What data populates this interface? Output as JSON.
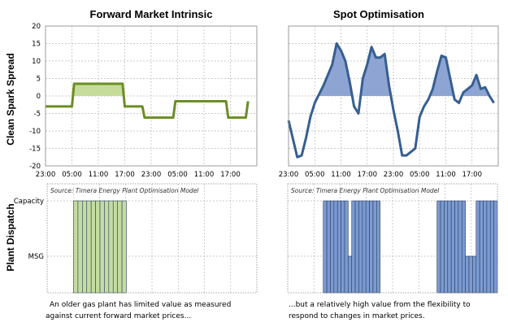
{
  "titles": {
    "left": "Forward Market Intrinsic",
    "right": "Spot Optimisation"
  },
  "axis_labels": {
    "top": "Clean Spark Spread",
    "bottom": "Plant Dispatch"
  },
  "source_note": "Source: Timera Energy Plant Optimisation Model",
  "captions": {
    "left": [
      "An older gas plant has limited value as measured",
      "against current forward market prices..."
    ],
    "right": [
      "...but a relatively high value from the flexibility to",
      "respond to changes in market prices."
    ]
  },
  "colors": {
    "forward_line": "#6b8e23",
    "forward_fill": "#c6dc9a",
    "spot_line": "#365f91",
    "spot_fill": "#8ea4d2",
    "dispatch_fill_green": "#c4dca0",
    "dispatch_fill_blue": "#7b9ad0"
  },
  "chart_data": [
    {
      "type": "line",
      "title": "Forward Market Intrinsic",
      "ylabel": "Clean Spark Spread",
      "ylim": [
        -20,
        20
      ],
      "yticks": [
        -20,
        -15,
        -10,
        -5,
        0,
        5,
        10,
        15,
        20
      ],
      "xlim": [
        0,
        48
      ],
      "xticks": [
        0,
        6,
        12,
        18,
        24,
        30,
        36,
        42
      ],
      "xtick_labels": [
        "23:00",
        "05:00",
        "11:00",
        "17:00",
        "23:00",
        "05:00",
        "11:00",
        "17:00"
      ],
      "grid": true,
      "series": [
        {
          "x": [
            0,
            6,
            6.5,
            17.5,
            18,
            22,
            22.5,
            29,
            29.5,
            41,
            41.5,
            45.5,
            46
          ],
          "y": [
            -3,
            -3,
            3.5,
            3.5,
            -3,
            -3,
            -6.2,
            -6.2,
            -1.5,
            -1.5,
            -6.2,
            -6.2,
            -1.5
          ]
        }
      ]
    },
    {
      "type": "line",
      "title": "Spot Optimisation",
      "ylim": [
        -20,
        20
      ],
      "xlim": [
        0,
        48
      ],
      "xticks": [
        0,
        6,
        12,
        18,
        24,
        30,
        36,
        42
      ],
      "xtick_labels": [
        "23:00",
        "05:00",
        "11:00",
        "17:00",
        "23:00",
        "05:00",
        "11:00",
        "17:00"
      ],
      "grid": true,
      "series": [
        {
          "x": [
            0,
            2,
            3,
            4,
            5,
            6,
            7,
            8,
            9,
            10,
            11,
            12,
            13,
            14,
            15,
            16,
            17,
            18,
            19,
            20,
            21,
            22,
            23,
            24,
            25,
            26,
            27,
            28,
            29,
            30,
            31,
            32,
            33,
            34,
            35,
            36,
            37,
            38,
            39,
            40,
            41,
            42,
            43,
            44,
            45,
            46,
            47
          ],
          "y": [
            -7,
            -17.5,
            -17,
            -12,
            -6,
            -2,
            0.5,
            3,
            6,
            9,
            15,
            13,
            10,
            4,
            -3,
            -5,
            5,
            9,
            14,
            11,
            11,
            12,
            3,
            -4,
            -10,
            -17,
            -17,
            -16,
            -15,
            -6,
            -3,
            -1,
            2,
            7,
            11.5,
            11,
            5,
            -1,
            -2,
            1,
            2,
            3,
            6,
            2,
            2.5,
            0,
            -2
          ]
        }
      ]
    },
    {
      "type": "bar",
      "title": "Plant Dispatch",
      "yticks": [
        "Capacity",
        "MSG"
      ],
      "source": "Source: Timera Energy Plant Optimisation Model",
      "dispatch_level_left": [
        0,
        0,
        0,
        0,
        0,
        0,
        1,
        1,
        1,
        1,
        1,
        1,
        1,
        1,
        1,
        1,
        1,
        1,
        0,
        0,
        0,
        0,
        0,
        0,
        0,
        0,
        0,
        0,
        0,
        0,
        0,
        0,
        0,
        0,
        0,
        0,
        0,
        0,
        0,
        0,
        0,
        0,
        0,
        0,
        0,
        0,
        0,
        0
      ],
      "dispatch_level_right": [
        0,
        0,
        0,
        0,
        0,
        0,
        0,
        0,
        0,
        0,
        1,
        1,
        1,
        1,
        1,
        1,
        1,
        0.4,
        1,
        1,
        1,
        1,
        1,
        1,
        1,
        1,
        0,
        0,
        0,
        0,
        0,
        0,
        0,
        0,
        0,
        0,
        0,
        0,
        0,
        0,
        0,
        0,
        1,
        1,
        1,
        1,
        1,
        1,
        1,
        1,
        0.4,
        0.4,
        0.4,
        1,
        1,
        1,
        1,
        1,
        1
      ]
    }
  ]
}
